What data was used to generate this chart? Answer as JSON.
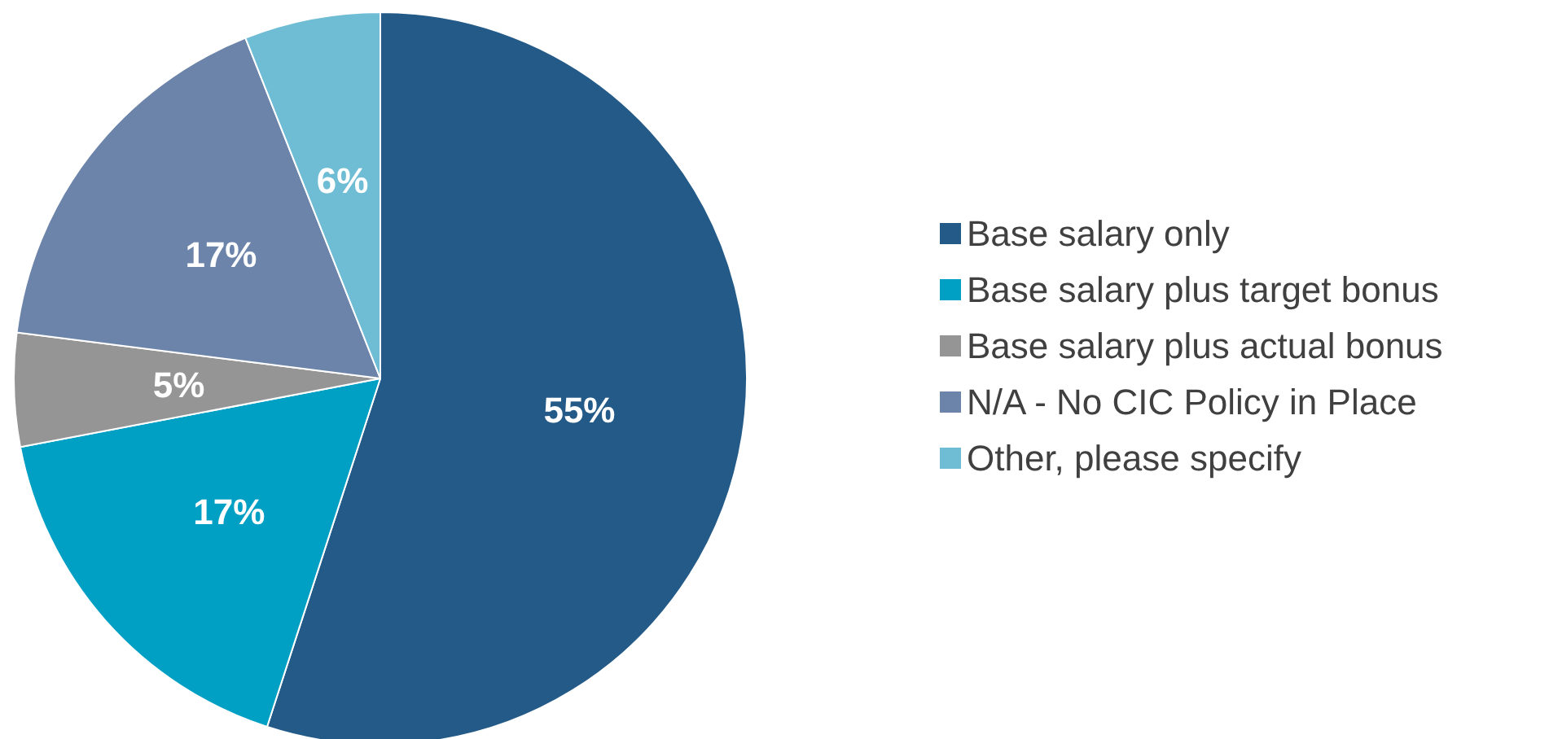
{
  "chart_data": {
    "type": "pie",
    "categories": [
      "Base salary only",
      "Base salary plus target bonus",
      "Base salary plus actual bonus",
      "N/A - No CIC Policy in Place",
      "Other, please specify"
    ],
    "values": [
      55,
      17,
      5,
      17,
      6
    ],
    "colors": [
      "#245a87",
      "#00a0c4",
      "#959595",
      "#6c84aa",
      "#6fbdd5"
    ],
    "value_labels": [
      "55%",
      "17%",
      "5%",
      "17%",
      "6%"
    ],
    "legend": "right"
  }
}
